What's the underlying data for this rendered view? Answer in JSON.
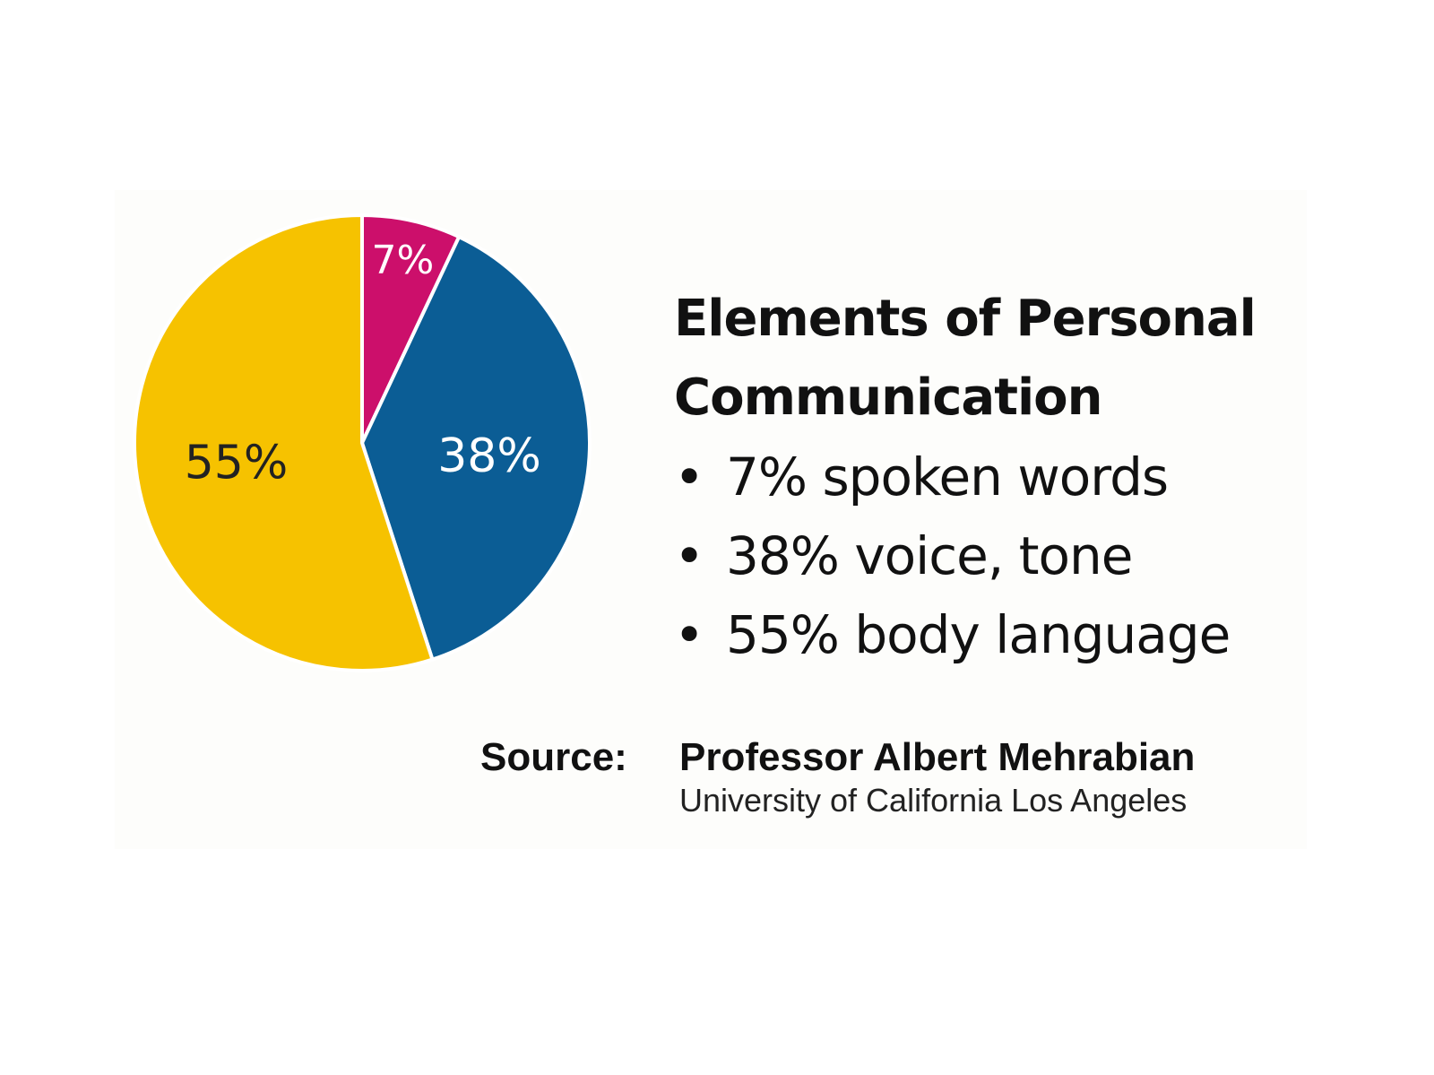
{
  "chart_data": {
    "type": "pie",
    "title": "Elements of Personal Communication",
    "title_lines": [
      "Elements of Personal",
      "Communication"
    ],
    "slices": [
      {
        "label": "7%",
        "value": 7,
        "color": "#cc0f6b",
        "label_color": "#ffffff"
      },
      {
        "label": "38%",
        "value": 38,
        "color": "#0b5d95",
        "label_color": "#ffffff"
      },
      {
        "label": "55%",
        "value": 55,
        "color": "#f6c200",
        "label_color": "#222222"
      }
    ],
    "bullets": [
      "7% spoken words",
      "38% voice, tone",
      "55% body language"
    ],
    "bullet_symbol": "•",
    "source": {
      "label": "Source:",
      "name": "Professor Albert Mehrabian",
      "affiliation": "University of California Los Angeles"
    }
  }
}
